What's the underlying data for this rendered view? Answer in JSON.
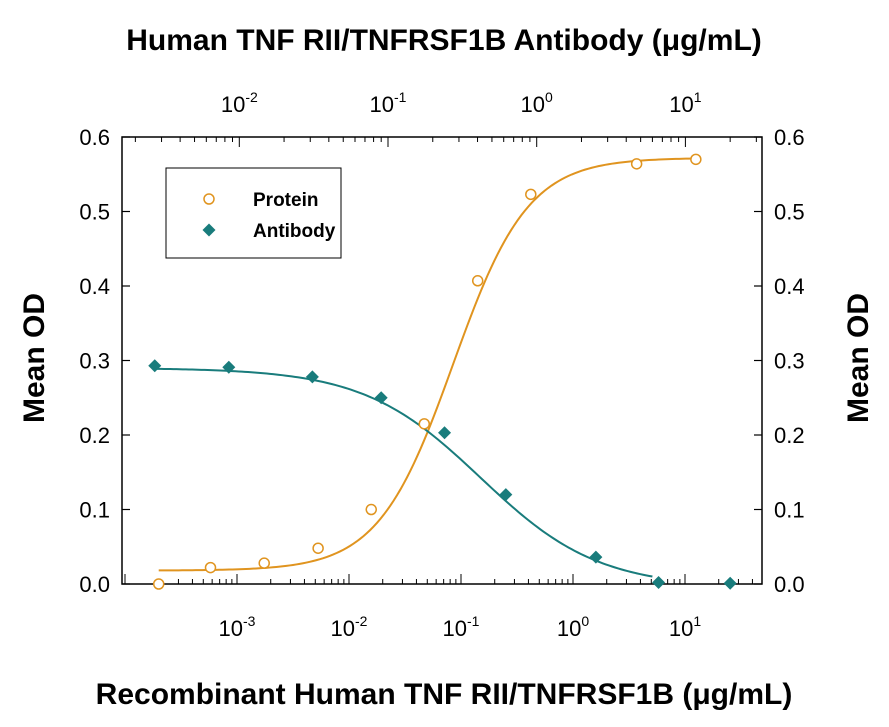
{
  "chart_data": {
    "type": "scatter",
    "title": "Human TNF RII/TNFRSF1B Antibody (μg/mL)",
    "xlabel": "Recombinant Human TNF RII/TNFRSF1B (μg/mL)",
    "ylabel_left": "Mean OD",
    "ylabel_right": "Mean OD",
    "ylim": [
      0,
      0.6
    ],
    "y_ticks": [
      "0.0",
      "0.1",
      "0.2",
      "0.3",
      "0.4",
      "0.5",
      "0.6"
    ],
    "x_bottom_scale": "log",
    "x_bottom_ticks": [
      {
        "base": "10",
        "exp": "-3"
      },
      {
        "base": "10",
        "exp": "-2"
      },
      {
        "base": "10",
        "exp": "-1"
      },
      {
        "base": "10",
        "exp": "0"
      },
      {
        "base": "10",
        "exp": "1"
      }
    ],
    "x_top_scale": "log",
    "x_top_ticks": [
      {
        "base": "10",
        "exp": "-2"
      },
      {
        "base": "10",
        "exp": "-1"
      },
      {
        "base": "10",
        "exp": "0"
      },
      {
        "base": "10",
        "exp": "1"
      }
    ],
    "legend": {
      "position": "top-left",
      "entries": [
        "Protein",
        "Antibody"
      ]
    },
    "grid": false,
    "series": [
      {
        "name": "Protein",
        "axis": "bottom",
        "marker": "open-circle",
        "color": "#E0941F",
        "x": [
          0.0002,
          0.00058,
          0.00175,
          0.0053,
          0.0158,
          0.047,
          0.141,
          0.42,
          3.7,
          12.5
        ],
        "y": [
          0.0,
          0.022,
          0.028,
          0.048,
          0.1,
          0.215,
          0.407,
          0.523,
          0.564,
          0.57
        ]
      },
      {
        "name": "Antibody",
        "axis": "top",
        "marker": "filled-diamond",
        "color": "#197C7C",
        "x": [
          0.0027,
          0.0085,
          0.031,
          0.09,
          0.24,
          0.62,
          2.5,
          6.6,
          20
        ],
        "y": [
          0.293,
          0.291,
          0.278,
          0.25,
          0.203,
          0.12,
          0.036,
          0.002,
          0.001
        ]
      }
    ],
    "fit_curves": [
      {
        "name": "Protein fit",
        "axis": "bottom",
        "color": "#E0941F",
        "bottom": 0.018,
        "top": 0.572,
        "ec50": 0.085,
        "hill": 1.3
      },
      {
        "name": "Antibody fit",
        "axis": "top",
        "color": "#197C7C",
        "bottom": -0.005,
        "top": 0.29,
        "ec50": 0.42,
        "hill": 1.1
      }
    ]
  }
}
